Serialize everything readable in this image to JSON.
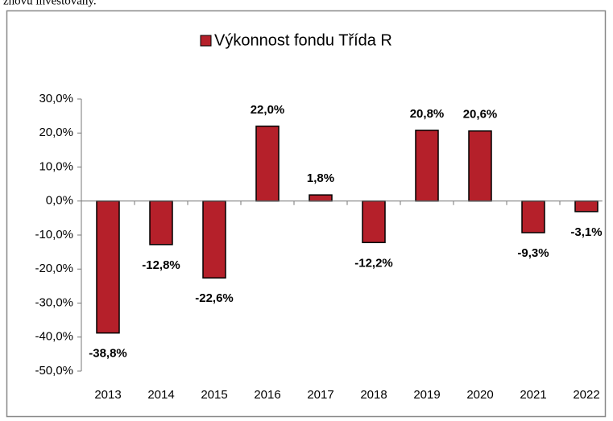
{
  "caption": "znovu investovány.",
  "chart_data": {
    "type": "bar",
    "categories": [
      "2013",
      "2014",
      "2015",
      "2016",
      "2017",
      "2018",
      "2019",
      "2020",
      "2021",
      "2022"
    ],
    "series": [
      {
        "name": "Výkonnost fondu Třída R",
        "color": "#b5202a",
        "values": [
          -38.8,
          -12.8,
          -22.6,
          22.0,
          1.8,
          -12.2,
          20.8,
          20.6,
          -9.3,
          -3.1
        ],
        "value_labels": [
          "-38,8%",
          "-12,8%",
          "-22,6%",
          "22,0%",
          "1,8%",
          "-12,2%",
          "20,8%",
          "20,6%",
          "-9,3%",
          "-3,1%"
        ]
      }
    ],
    "ylim": [
      -50,
      30
    ],
    "yticks": [
      {
        "value": -50,
        "label": "-50,0%"
      },
      {
        "value": -40,
        "label": "-40,0%"
      },
      {
        "value": -30,
        "label": "-30,0%"
      },
      {
        "value": -20,
        "label": "-20,0%"
      },
      {
        "value": -10,
        "label": "-10,0%"
      },
      {
        "value": 0,
        "label": "0,0%"
      },
      {
        "value": 10,
        "label": "10,0%"
      },
      {
        "value": 20,
        "label": "20,0%"
      },
      {
        "value": 30,
        "label": "30,0%"
      }
    ],
    "legend": "top",
    "grid": false
  }
}
